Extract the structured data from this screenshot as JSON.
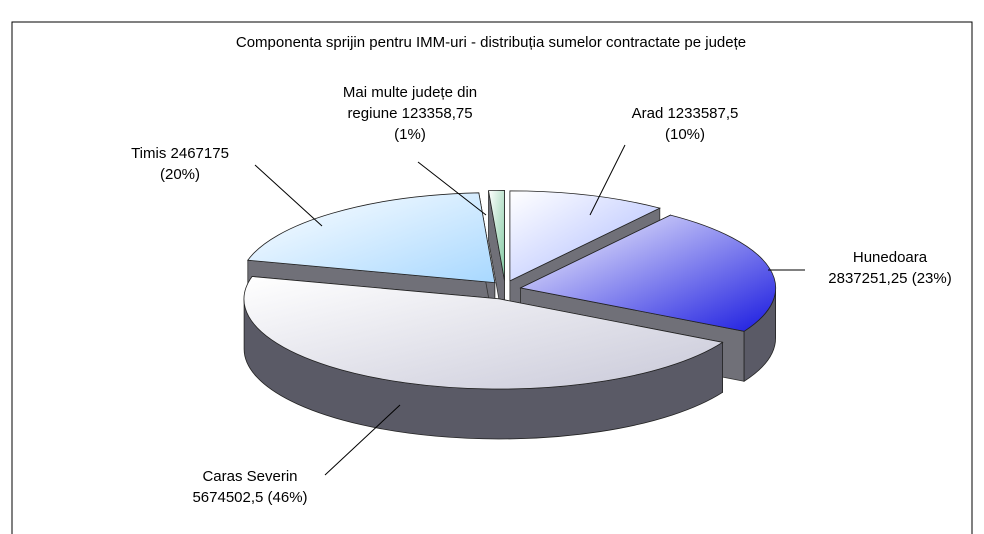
{
  "chart_data": {
    "type": "pie",
    "title": "Componenta sprijin pentru IMM-uri - distribuția sumelor contractate pe județe",
    "categories": [
      "Arad",
      "Hunedoara",
      "Caras Severin",
      "Timis",
      "Mai multe județe din regiune"
    ],
    "values": [
      1233587.5,
      2837251.25,
      5674502.5,
      2467175,
      123358.75
    ],
    "value_labels": [
      "1233587,5",
      "2837251,25",
      "5674502,5",
      "2467175",
      "123358,75"
    ],
    "percent_labels": [
      "(10%)",
      "(23%)",
      "(46%)",
      "(20%)",
      "(1%)"
    ],
    "colors": [
      "#aab8ff",
      "#1a1ae0",
      "#c8c8d8",
      "#a8d8ff",
      "#80c8a0"
    ]
  }
}
